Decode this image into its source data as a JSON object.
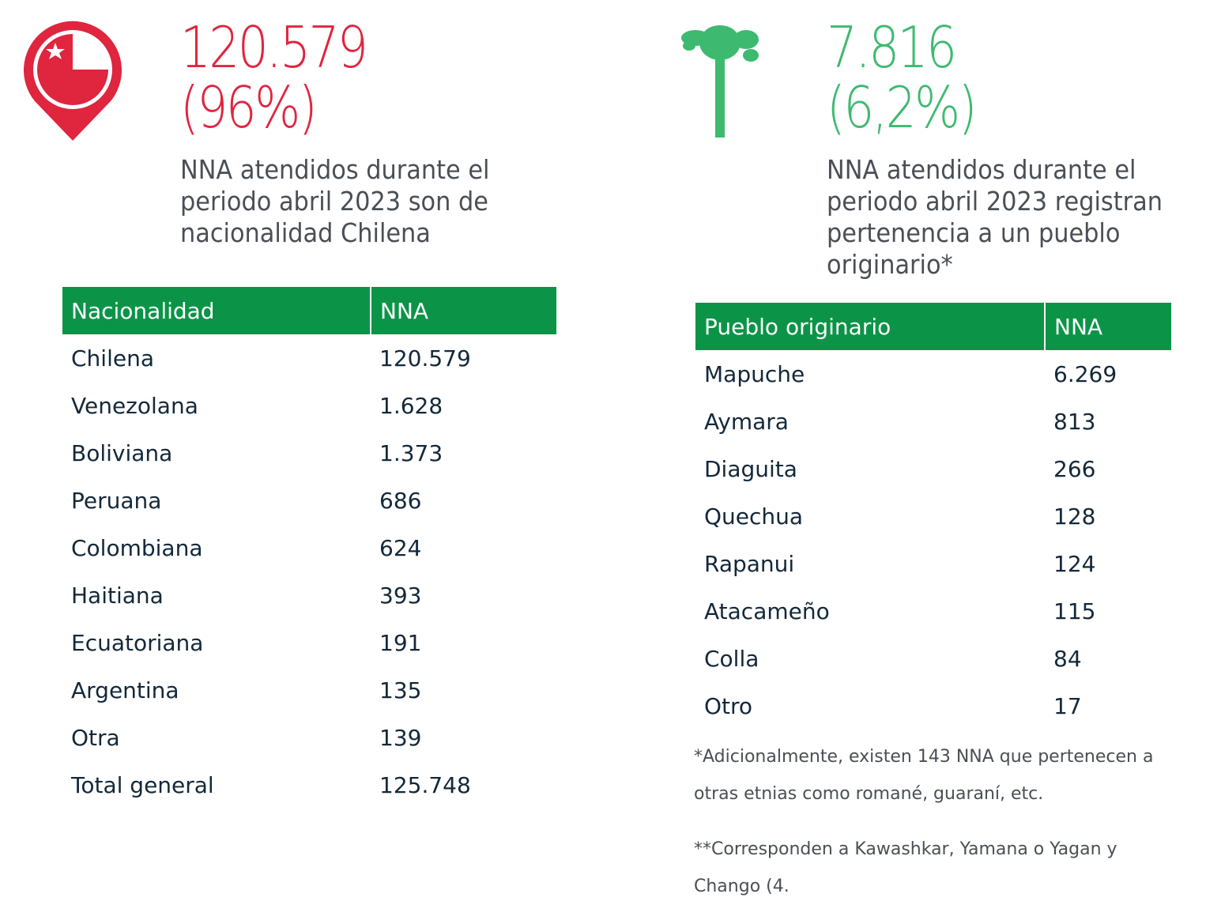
{
  "left": {
    "stat": "120.579",
    "percent": "(96%)",
    "description": [
      "NNA atendidos durante el",
      "periodo abril 2023 son de",
      "nacionalidad Chilena"
    ],
    "table": {
      "header": [
        "Nacionalidad",
        "NNA"
      ],
      "rows": [
        [
          "Chilena",
          "120.579"
        ],
        [
          "Venezolana",
          "1.628"
        ],
        [
          "Boliviana",
          "1.373"
        ],
        [
          "Peruana",
          "686"
        ],
        [
          "Colombiana",
          "624"
        ],
        [
          "Haitiana",
          "393"
        ],
        [
          "Ecuatoriana",
          "191"
        ],
        [
          "Argentina",
          "135"
        ],
        [
          "Otra",
          "139"
        ],
        [
          "Total general",
          "125.748"
        ]
      ]
    }
  },
  "right": {
    "stat": "7.816",
    "percent": "(6,2%)",
    "description": [
      "NNA atendidos durante el",
      "periodo abril 2023 registran",
      "pertenencia a un pueblo",
      "originario*"
    ],
    "table": {
      "header": [
        "Pueblo originario",
        "NNA"
      ],
      "rows": [
        [
          "Mapuche",
          "6.269"
        ],
        [
          "Aymara",
          "813"
        ],
        [
          "Diaguita",
          "266"
        ],
        [
          "Quechua",
          "128"
        ],
        [
          "Rapanui",
          "124"
        ],
        [
          "Atacameño",
          "115"
        ],
        [
          "Colla",
          "84"
        ],
        [
          "Otro",
          "17"
        ]
      ]
    },
    "footnotes": [
      [
        "*Adicionalmente, existen 143 NNA que pertenecen a",
        "otras etnias como romané, guaraní, etc."
      ],
      [
        "**Corresponden a Kawashkar, Yamana o Yagan  y",
        "Chango (4."
      ]
    ]
  }
}
